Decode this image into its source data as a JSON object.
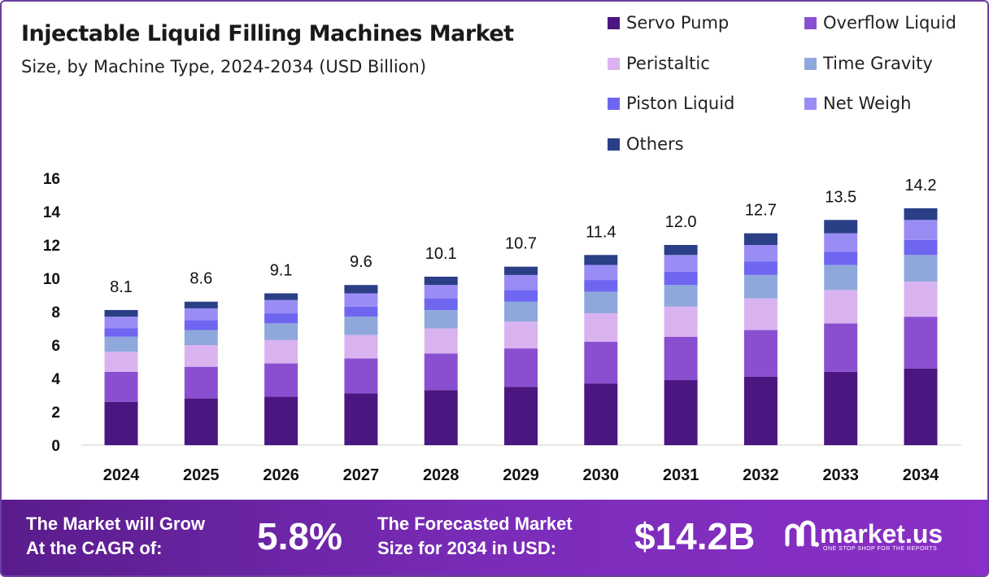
{
  "header": {
    "title": "Injectable Liquid Filling Machines Market",
    "subtitle": "Size, by Machine Type, 2024-2034 (USD Billion)"
  },
  "chart_data": {
    "type": "bar",
    "stacked": true,
    "categories": [
      "2024",
      "2025",
      "2026",
      "2027",
      "2028",
      "2029",
      "2030",
      "2031",
      "2032",
      "2033",
      "2034"
    ],
    "totals": [
      8.1,
      8.6,
      9.1,
      9.6,
      10.1,
      10.7,
      11.4,
      12.0,
      12.7,
      13.5,
      14.2
    ],
    "total_labels": [
      "8.1",
      "8.6",
      "9.1",
      "9.6",
      "10.1",
      "10.7",
      "11.4",
      "12.0",
      "12.7",
      "13.5",
      "14.2"
    ],
    "ylim": [
      0,
      16
    ],
    "yticks": [
      0,
      2,
      4,
      6,
      8,
      10,
      12,
      14,
      16
    ],
    "grid": false,
    "legend_position": "top-right",
    "series": [
      {
        "name": "Servo Pump",
        "color": "#4b1680",
        "values": [
          2.6,
          2.8,
          2.9,
          3.1,
          3.3,
          3.5,
          3.7,
          3.9,
          4.1,
          4.4,
          4.6
        ]
      },
      {
        "name": "Overflow Liquid",
        "color": "#8a4fd0",
        "values": [
          1.8,
          1.9,
          2.0,
          2.1,
          2.2,
          2.3,
          2.5,
          2.6,
          2.8,
          2.9,
          3.1
        ]
      },
      {
        "name": "Peristaltic",
        "color": "#d9b3f0",
        "values": [
          1.2,
          1.3,
          1.4,
          1.4,
          1.5,
          1.6,
          1.7,
          1.8,
          1.9,
          2.0,
          2.1
        ]
      },
      {
        "name": "Time Gravity",
        "color": "#8fa8dc",
        "values": [
          0.9,
          0.9,
          1.0,
          1.1,
          1.1,
          1.2,
          1.3,
          1.3,
          1.4,
          1.5,
          1.6
        ]
      },
      {
        "name": "Piston Liquid",
        "color": "#6e66f0",
        "values": [
          0.5,
          0.6,
          0.6,
          0.6,
          0.7,
          0.7,
          0.7,
          0.8,
          0.8,
          0.8,
          0.9
        ]
      },
      {
        "name": "Net Weigh",
        "color": "#9a8cf5",
        "values": [
          0.7,
          0.7,
          0.8,
          0.8,
          0.8,
          0.9,
          0.9,
          1.0,
          1.0,
          1.1,
          1.2
        ]
      },
      {
        "name": "Others",
        "color": "#2a3f86",
        "values": [
          0.4,
          0.4,
          0.4,
          0.5,
          0.5,
          0.5,
          0.6,
          0.6,
          0.7,
          0.8,
          0.7
        ]
      }
    ]
  },
  "footer": {
    "cagr_text_1": "The Market will Grow",
    "cagr_text_2": "At the CAGR of:",
    "cagr_value": "5.8%",
    "forecast_text_1": "The Forecasted Market",
    "forecast_text_2": "Size for 2034 in USD:",
    "forecast_value": "$14.2B",
    "logo_text": "market.us",
    "logo_tagline": "ONE STOP SHOP FOR THE REPORTS"
  }
}
